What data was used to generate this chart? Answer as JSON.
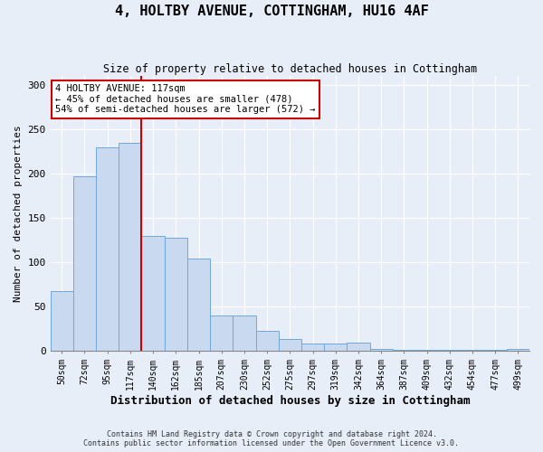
{
  "title": "4, HOLTBY AVENUE, COTTINGHAM, HU16 4AF",
  "subtitle": "Size of property relative to detached houses in Cottingham",
  "xlabel": "Distribution of detached houses by size in Cottingham",
  "ylabel": "Number of detached properties",
  "categories": [
    "50sqm",
    "72sqm",
    "95sqm",
    "117sqm",
    "140sqm",
    "162sqm",
    "185sqm",
    "207sqm",
    "230sqm",
    "252sqm",
    "275sqm",
    "297sqm",
    "319sqm",
    "342sqm",
    "364sqm",
    "387sqm",
    "409sqm",
    "432sqm",
    "454sqm",
    "477sqm",
    "499sqm"
  ],
  "values": [
    68,
    197,
    230,
    235,
    130,
    128,
    104,
    40,
    40,
    23,
    14,
    9,
    9,
    10,
    3,
    1,
    1,
    1,
    1,
    1,
    3
  ],
  "bar_color": "#c9d9f0",
  "bar_edge_color": "#6fa8dc",
  "vline_x": 3.5,
  "vline_color": "#cc0000",
  "annotation_text": "4 HOLTBY AVENUE: 117sqm\n← 45% of detached houses are smaller (478)\n54% of semi-detached houses are larger (572) →",
  "annotation_box_color": "#ffffff",
  "annotation_box_edge_color": "#cc0000",
  "ylim": [
    0,
    310
  ],
  "yticks": [
    0,
    50,
    100,
    150,
    200,
    250,
    300
  ],
  "footer_line1": "Contains HM Land Registry data © Crown copyright and database right 2024.",
  "footer_line2": "Contains public sector information licensed under the Open Government Licence v3.0.",
  "background_color": "#e8eef8"
}
